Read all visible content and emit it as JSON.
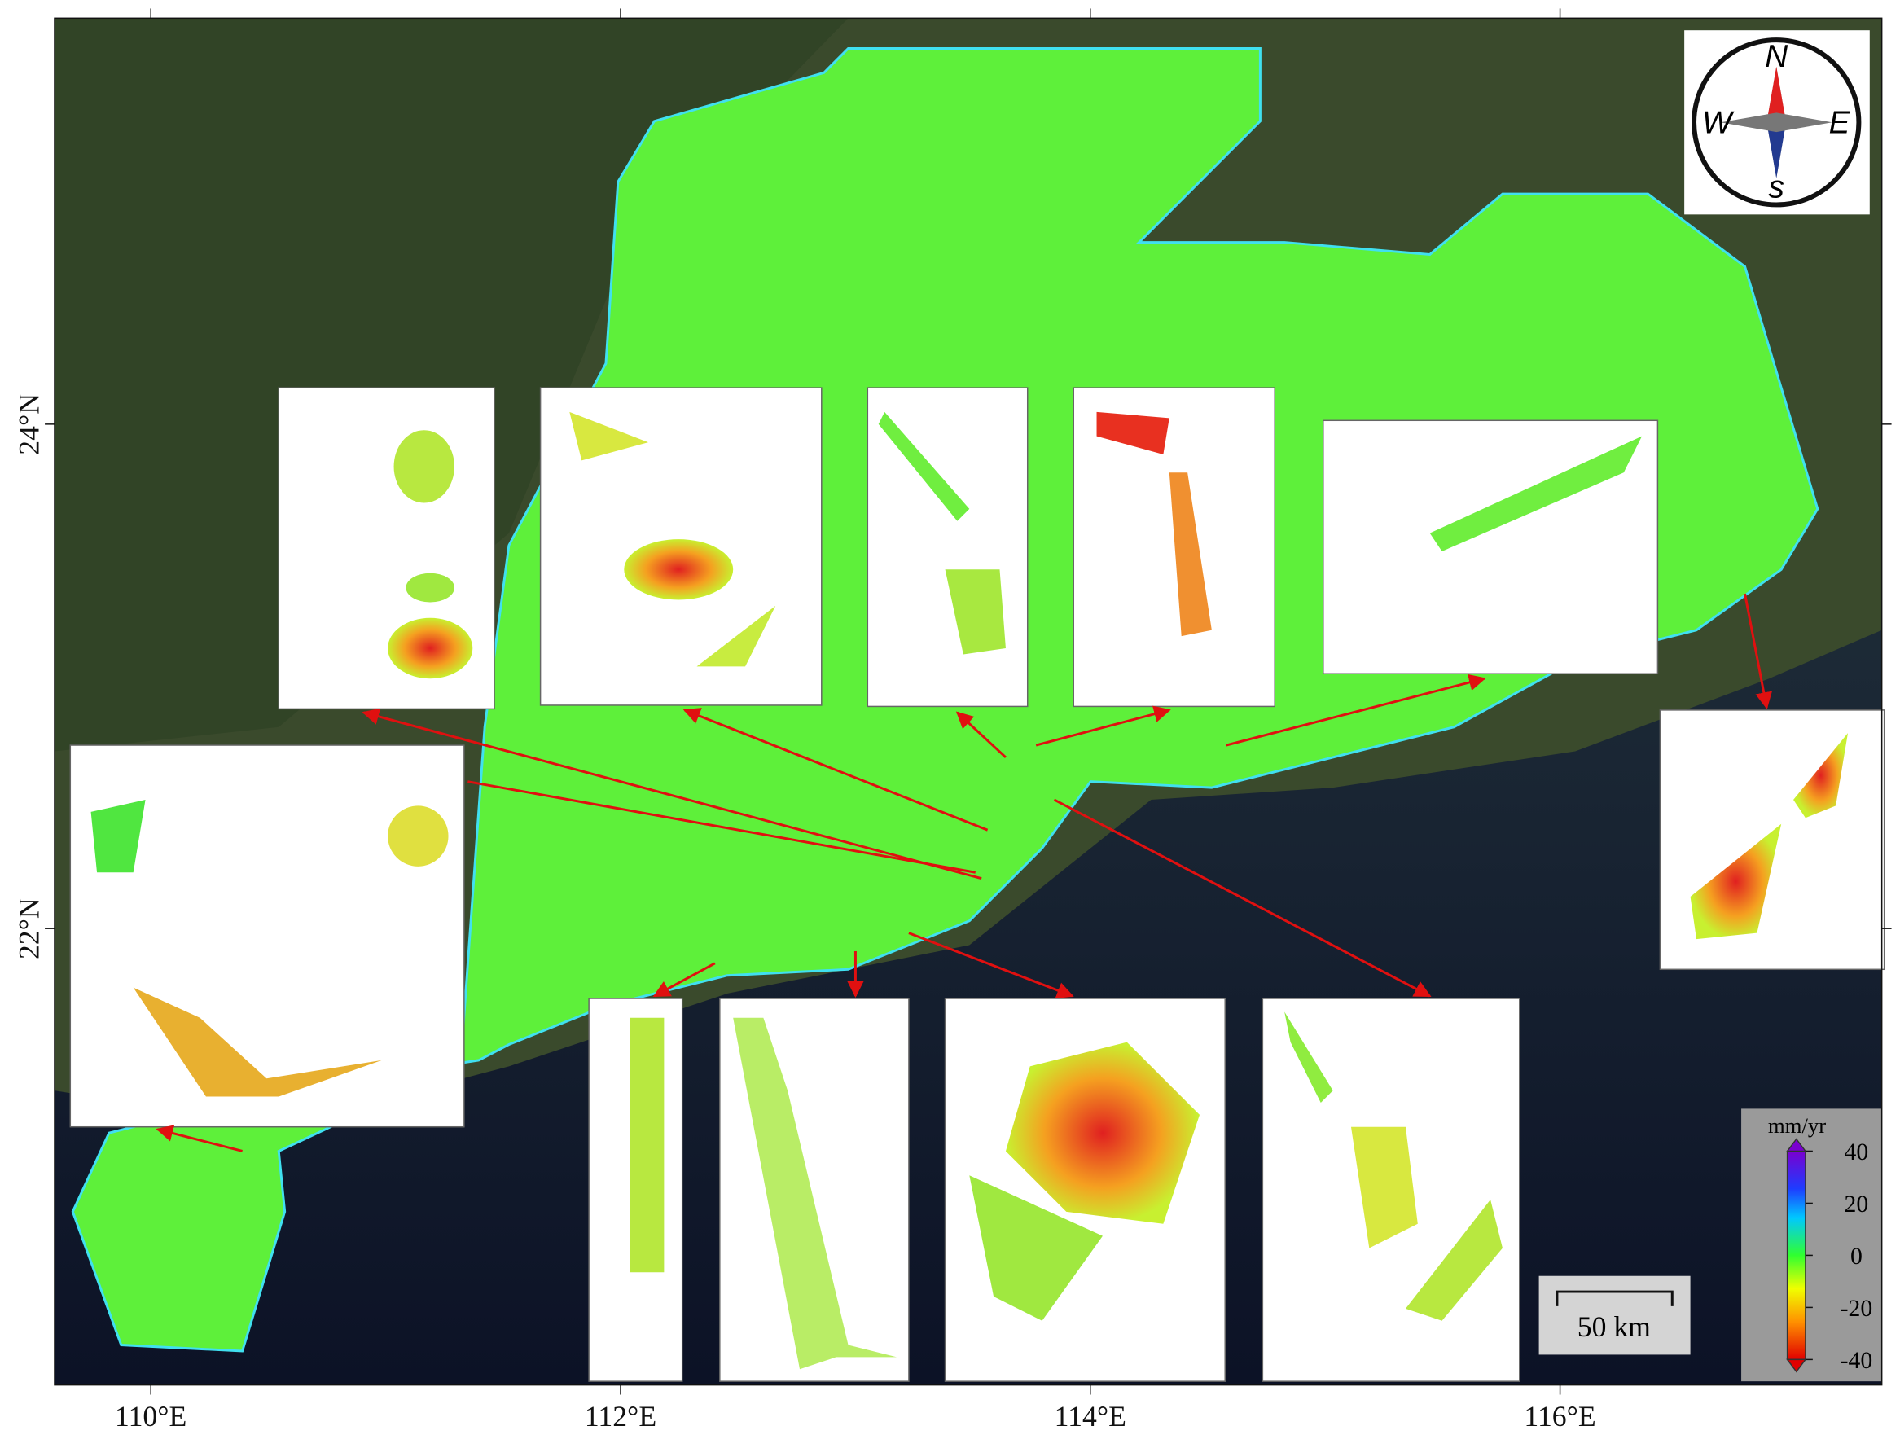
{
  "map": {
    "lonlim": [
      109.59,
      117.37
    ],
    "latlim": [
      20.19,
      25.61
    ],
    "x_ticks": [
      {
        "value": 110,
        "label": "110°E"
      },
      {
        "value": 112,
        "label": "112°E"
      },
      {
        "value": 114,
        "label": "114°E"
      },
      {
        "value": 116,
        "label": "116°E"
      }
    ],
    "y_ticks": [
      {
        "value": 22,
        "label": "22°N"
      },
      {
        "value": 24,
        "label": "24°N"
      }
    ],
    "compass": {
      "north": "N",
      "west": "W",
      "east": "E",
      "south": "s"
    },
    "scale_bar": "50 km",
    "colorbar": {
      "unit": "mm/yr",
      "range": [
        -40,
        40
      ],
      "ticks": [
        40,
        20,
        0,
        -20,
        -40
      ]
    }
  }
}
